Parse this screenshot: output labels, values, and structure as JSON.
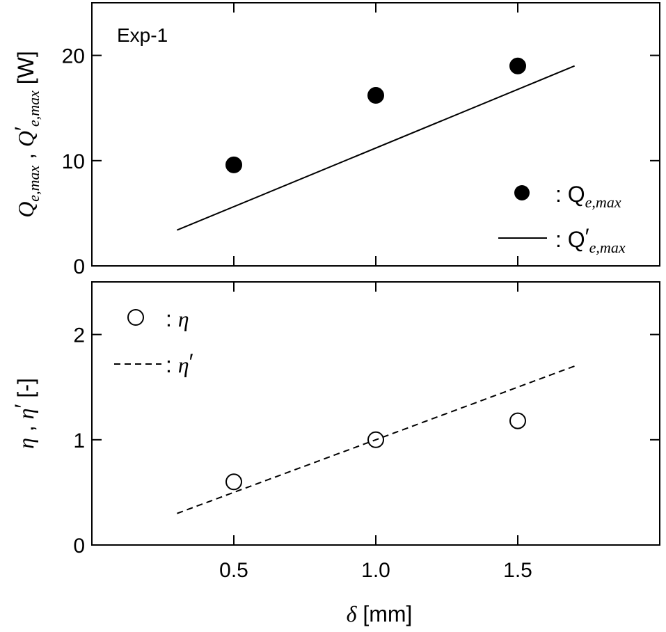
{
  "chart_data": [
    {
      "type": "scatter",
      "annotation": "Exp-1",
      "ylabel": {
        "sym1": "Q",
        "sub1": "e,max",
        "sep": " ,  ",
        "sym2": "Q",
        "prime": "′",
        "sub2": "e,max",
        "unit": " [W]"
      },
      "xlim": [
        0,
        2.0
      ],
      "ylim": [
        0,
        25
      ],
      "yticks": [
        0,
        10,
        20
      ],
      "ytick_labels": [
        "0",
        "10",
        "20"
      ],
      "series": [
        {
          "name": "Q_e,max",
          "style": "filled-marker",
          "legend": {
            "prefix": ": ",
            "sym": "Q",
            "sub": "e,max"
          },
          "x": [
            0.5,
            1.0,
            1.5
          ],
          "y": [
            9.6,
            16.2,
            19.0
          ]
        },
        {
          "name": "Q'_e,max",
          "style": "solid-line",
          "legend": {
            "prefix": ": ",
            "sym": "Q",
            "prime": "′",
            "sub": "e,max"
          },
          "x": [
            0.3,
            1.7
          ],
          "y": [
            3.4,
            19.0
          ]
        }
      ],
      "legend_position": "bottom-right"
    },
    {
      "type": "scatter",
      "ylabel": {
        "sym1": "η",
        "sep": " ,  ",
        "sym2": "η",
        "prime": "′",
        "unit": "  [-]"
      },
      "xlabel": {
        "sym": "δ",
        "unit": " [mm]"
      },
      "xlim": [
        0,
        2.0
      ],
      "xticks": [
        0.5,
        1.0,
        1.5
      ],
      "xtick_labels": [
        "0.5",
        "1.0",
        "1.5"
      ],
      "ylim": [
        0,
        2.5
      ],
      "yticks": [
        0,
        1,
        2
      ],
      "ytick_labels": [
        "0",
        "1",
        "2"
      ],
      "series": [
        {
          "name": "eta",
          "style": "open-marker",
          "legend": {
            "prefix": ": ",
            "sym": "η"
          },
          "x": [
            0.5,
            1.0,
            1.5
          ],
          "y": [
            0.6,
            1.0,
            1.18
          ]
        },
        {
          "name": "eta'",
          "style": "dashed-line",
          "legend": {
            "prefix": ": ",
            "sym": "η",
            "prime": "′"
          },
          "x": [
            0.3,
            1.7
          ],
          "y": [
            0.3,
            1.7
          ]
        }
      ],
      "legend_position": "top-left"
    }
  ]
}
